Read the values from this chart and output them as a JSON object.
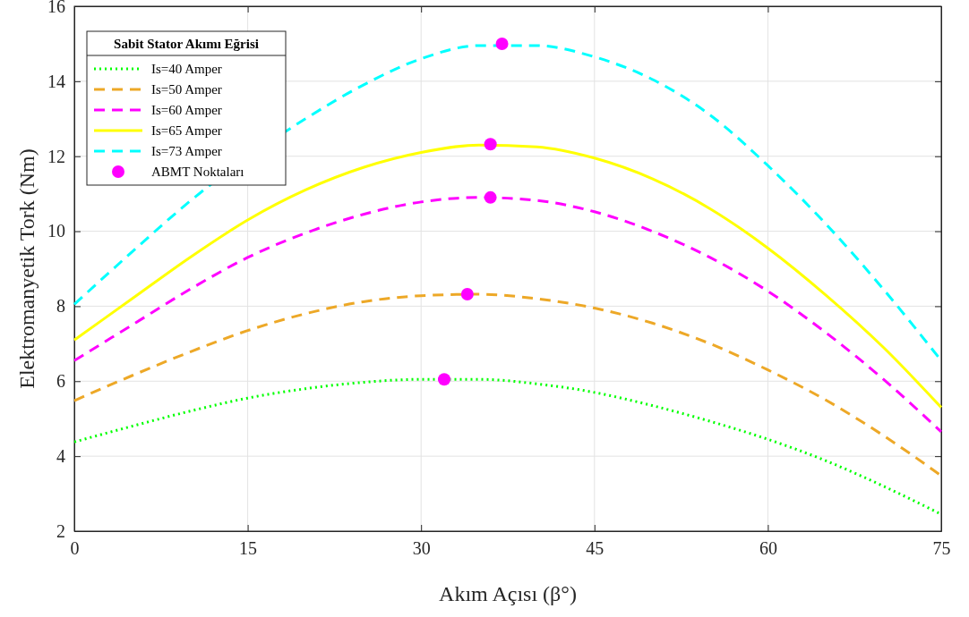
{
  "chart_data": {
    "type": "line",
    "xlabel": "Akım Açısı (β°)",
    "ylabel": "Elektromanyetik Tork (Nm)",
    "legend_title": "Sabit Stator Akımı Eğrisi",
    "x": [
      0,
      5,
      10,
      15,
      20,
      25,
      30,
      35,
      40,
      45,
      50,
      55,
      60,
      65,
      70,
      75
    ],
    "xlim": [
      0,
      75
    ],
    "xticks": [
      0,
      15,
      30,
      45,
      60,
      75
    ],
    "ylim": [
      2,
      16
    ],
    "yticks": [
      2,
      4,
      6,
      8,
      10,
      12,
      14,
      16
    ],
    "grid": true,
    "legend": "top left",
    "series": [
      {
        "name": "Is=40 Amper",
        "color": "#00ff00",
        "line_style": "dotted",
        "values": [
          4.38,
          4.8,
          5.2,
          5.55,
          5.8,
          5.97,
          6.05,
          6.05,
          5.93,
          5.7,
          5.35,
          4.93,
          4.45,
          3.88,
          3.2,
          2.45
        ]
      },
      {
        "name": "Is=50 Amper",
        "color": "#eda827",
        "line_style": "dashed",
        "values": [
          5.48,
          6.15,
          6.78,
          7.35,
          7.8,
          8.12,
          8.28,
          8.32,
          8.2,
          7.95,
          7.55,
          7.0,
          6.3,
          5.5,
          4.55,
          3.48
        ]
      },
      {
        "name": "Is=60 Amper",
        "color": "#ff00ff",
        "line_style": "dashed",
        "values": [
          6.55,
          7.5,
          8.45,
          9.3,
          9.95,
          10.45,
          10.78,
          10.9,
          10.82,
          10.52,
          10.0,
          9.3,
          8.4,
          7.3,
          6.05,
          4.65
        ]
      },
      {
        "name": "Is=65 Amper",
        "color": "#ffff00",
        "line_style": "solid",
        "values": [
          7.1,
          8.2,
          9.3,
          10.3,
          11.1,
          11.7,
          12.1,
          12.3,
          12.25,
          11.95,
          11.4,
          10.6,
          9.55,
          8.3,
          6.9,
          5.3
        ]
      },
      {
        "name": "Is=73 Amper",
        "color": "#00ffff",
        "line_style": "dashed",
        "values": [
          8.05,
          9.45,
          10.8,
          null,
          13.0,
          13.9,
          14.6,
          14.95,
          14.95,
          14.65,
          14.05,
          13.1,
          11.75,
          10.2,
          8.45,
          6.55
        ]
      },
      {
        "name": "ABMT Noktaları",
        "type": "scatter",
        "color": "#ff00ff",
        "marker": "circle",
        "x": [
          32,
          34,
          36,
          36,
          37
        ],
        "values": [
          6.05,
          8.32,
          10.9,
          12.32,
          15.0
        ]
      }
    ]
  }
}
